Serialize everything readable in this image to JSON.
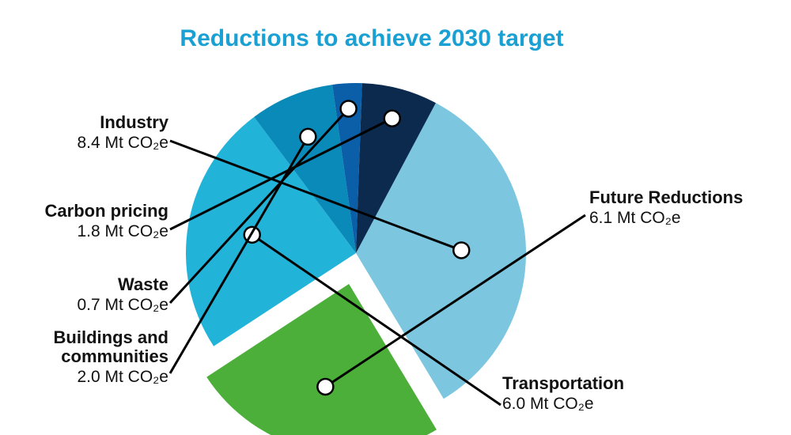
{
  "chart_data": {
    "type": "pie",
    "title": "Reductions to achieve 2030 target",
    "unit": "Mt CO₂e",
    "slices": [
      {
        "name": "Industry",
        "value": 8.4,
        "label": "8.4 Mt CO₂e",
        "color": "#7cc6df"
      },
      {
        "name": "Future Reductions",
        "value": 6.1,
        "label": "6.1 Mt CO₂e",
        "color": "#4caf3a",
        "exploded": true
      },
      {
        "name": "Transportation",
        "value": 6.0,
        "label": "6.0 Mt CO₂e",
        "color": "#22b3d9"
      },
      {
        "name": "Buildings and communities",
        "value": 2.0,
        "label": "2.0 Mt CO₂e",
        "color": "#0a8ab8"
      },
      {
        "name": "Waste",
        "value": 0.7,
        "label": "0.7 Mt CO₂e",
        "color": "#0b5ea8"
      },
      {
        "name": "Carbon pricing",
        "value": 1.8,
        "label": "1.8 Mt CO₂e",
        "color": "#0b2a4e"
      }
    ]
  }
}
